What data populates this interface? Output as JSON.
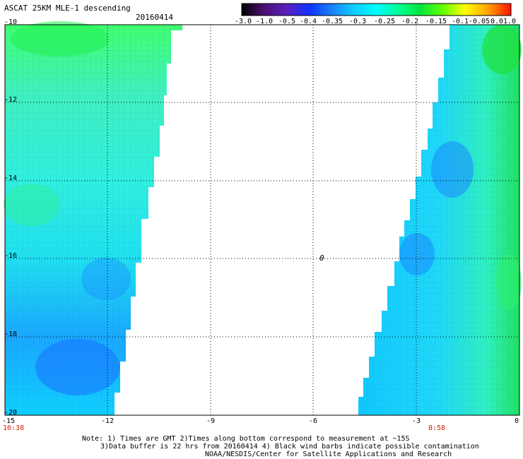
{
  "header": {
    "title": "ASCAT 25KM MLE-1 descending",
    "date": "20160414"
  },
  "colorbar": {
    "labels": [
      "-3.0",
      "-1.0",
      "-0.5",
      "-0.4",
      "-0.35",
      "-0.3",
      "-0.25",
      "-0.2",
      "-0.15",
      "-0.1",
      "-0.05",
      "0.0",
      "1.0"
    ],
    "colors": [
      "#000000",
      "#5a1a8c",
      "#3a2ad0",
      "#1040ff",
      "#1a8cff",
      "#1ab8ff",
      "#00ffff",
      "#00ff99",
      "#00e640",
      "#66ff00",
      "#ffff00",
      "#ff9900",
      "#ff0000"
    ]
  },
  "axes": {
    "y_ticks": [
      "-10",
      "-12",
      "-14",
      "-16",
      "-18",
      "-20"
    ],
    "x_ticks": [
      "-15",
      "-12",
      "-9",
      "-6",
      "-3",
      "0"
    ],
    "xlim": [
      -15,
      0
    ],
    "ylim": [
      -20,
      -10
    ],
    "grid": true
  },
  "times": {
    "left": "10:38",
    "right": "8:58"
  },
  "marker": "0",
  "notes": {
    "line1": "Note: 1) Times are GMT 2)Times along bottom correspond to measurement at ~15S",
    "line2": "3)Data buffer is 22 hrs from 20160414 4) Black wind barbs indicate possible contamination",
    "line3": "NOAA/NESDIS/Center for Satellite Applications and Research"
  }
}
